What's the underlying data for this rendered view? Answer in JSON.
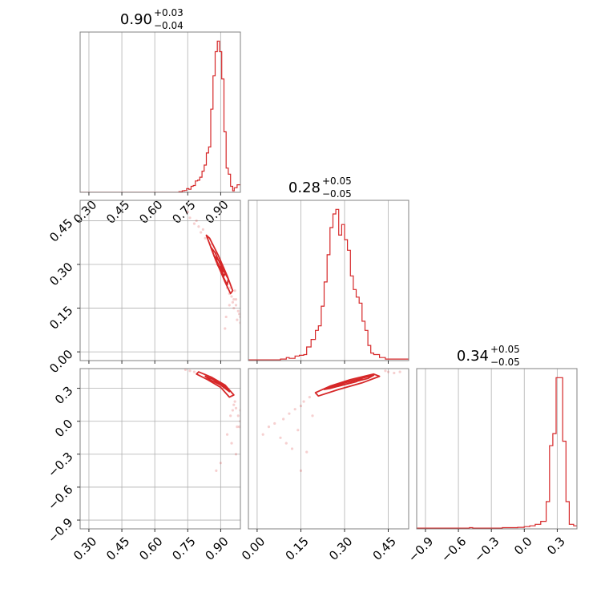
{
  "colors": {
    "series": "#d62728",
    "grid": "#b0b0b0",
    "frame": "#808080",
    "background": "#ffffff"
  },
  "chart_data": [
    {
      "type": "histogram",
      "position": "row-1-col-1",
      "title": {
        "base": "0.90",
        "plus": "+0.03",
        "minus": "−0.04"
      },
      "xlim": [
        0.26,
        0.99
      ],
      "xticks": [
        0.3,
        0.45,
        0.6,
        0.75,
        0.9
      ],
      "xtick_labels": [
        "0.30",
        "0.45",
        "0.60",
        "0.75",
        "0.90"
      ],
      "grid": true,
      "bins": [
        [
          0.26,
          0
        ],
        [
          0.71,
          0.004
        ],
        [
          0.725,
          0.01
        ],
        [
          0.735,
          0.012
        ],
        [
          0.745,
          0.025
        ],
        [
          0.755,
          0.02
        ],
        [
          0.765,
          0.04
        ],
        [
          0.775,
          0.045
        ],
        [
          0.785,
          0.075
        ],
        [
          0.795,
          0.08
        ],
        [
          0.805,
          0.1
        ],
        [
          0.815,
          0.14
        ],
        [
          0.825,
          0.18
        ],
        [
          0.835,
          0.26
        ],
        [
          0.845,
          0.3
        ],
        [
          0.855,
          0.55
        ],
        [
          0.865,
          0.77
        ],
        [
          0.875,
          0.93
        ],
        [
          0.885,
          1.0
        ],
        [
          0.895,
          0.93
        ],
        [
          0.905,
          0.75
        ],
        [
          0.915,
          0.4
        ],
        [
          0.925,
          0.16
        ],
        [
          0.935,
          0.12
        ],
        [
          0.945,
          0.04
        ],
        [
          0.955,
          0.01
        ],
        [
          0.962,
          0.03
        ],
        [
          0.975,
          0.05
        ],
        [
          0.99,
          0.05
        ]
      ]
    },
    {
      "type": "scatter-contour",
      "position": "row-2-col-1",
      "xlim": [
        0.26,
        0.99
      ],
      "ylim": [
        -0.03,
        0.52
      ],
      "xticks": [
        0.3,
        0.45,
        0.6,
        0.75,
        0.9
      ],
      "yticks": [
        0.0,
        0.15,
        0.3,
        0.45
      ],
      "ytick_labels": [
        "0.00",
        "0.15",
        "0.30",
        "0.45"
      ],
      "grid": true,
      "contours": [
        [
          [
            0.835,
            0.4
          ],
          [
            0.87,
            0.33
          ],
          [
            0.92,
            0.24
          ],
          [
            0.945,
            0.2
          ],
          [
            0.955,
            0.21
          ],
          [
            0.93,
            0.26
          ],
          [
            0.89,
            0.33
          ],
          [
            0.85,
            0.39
          ]
        ],
        [
          [
            0.855,
            0.36
          ],
          [
            0.88,
            0.31
          ],
          [
            0.91,
            0.26
          ],
          [
            0.93,
            0.23
          ],
          [
            0.935,
            0.25
          ],
          [
            0.905,
            0.29
          ],
          [
            0.875,
            0.34
          ]
        ],
        [
          [
            0.87,
            0.33
          ],
          [
            0.89,
            0.3
          ],
          [
            0.915,
            0.26
          ],
          [
            0.92,
            0.27
          ],
          [
            0.895,
            0.31
          ]
        ],
        [
          [
            0.885,
            0.3
          ],
          [
            0.9,
            0.28
          ],
          [
            0.91,
            0.275
          ],
          [
            0.9,
            0.29
          ]
        ]
      ],
      "points": [
        [
          0.75,
          0.48
        ],
        [
          0.76,
          0.46
        ],
        [
          0.78,
          0.44
        ],
        [
          0.79,
          0.45
        ],
        [
          0.8,
          0.43
        ],
        [
          0.81,
          0.41
        ],
        [
          0.82,
          0.42
        ],
        [
          0.83,
          0.39
        ],
        [
          0.86,
          0.37
        ],
        [
          0.88,
          0.34
        ],
        [
          0.9,
          0.29
        ],
        [
          0.92,
          0.27
        ],
        [
          0.93,
          0.22
        ],
        [
          0.95,
          0.19
        ],
        [
          0.96,
          0.18
        ],
        [
          0.97,
          0.16
        ],
        [
          0.98,
          0.14
        ],
        [
          0.99,
          0.12
        ],
        [
          0.985,
          0.13
        ],
        [
          0.97,
          0.18
        ],
        [
          0.96,
          0.15
        ],
        [
          0.955,
          0.17
        ],
        [
          0.945,
          0.22
        ],
        [
          0.94,
          0.2
        ],
        [
          0.925,
          0.12
        ],
        [
          0.92,
          0.08
        ],
        [
          0.94,
          0.16
        ],
        [
          0.965,
          0.21
        ],
        [
          0.975,
          0.11
        ],
        [
          0.99,
          0.1
        ]
      ]
    },
    {
      "type": "histogram",
      "position": "row-2-col-2",
      "title": {
        "base": "0.28",
        "plus": "+0.05",
        "minus": "−0.05"
      },
      "xlim": [
        -0.03,
        0.52
      ],
      "xticks": [
        0.0,
        0.15,
        0.3,
        0.45
      ],
      "grid": true,
      "bins": [
        [
          -0.03,
          0.005
        ],
        [
          0.06,
          0.005
        ],
        [
          0.08,
          0.01
        ],
        [
          0.1,
          0.02
        ],
        [
          0.11,
          0.015
        ],
        [
          0.13,
          0.03
        ],
        [
          0.145,
          0.035
        ],
        [
          0.16,
          0.04
        ],
        [
          0.17,
          0.09
        ],
        [
          0.185,
          0.14
        ],
        [
          0.2,
          0.2
        ],
        [
          0.21,
          0.23
        ],
        [
          0.22,
          0.36
        ],
        [
          0.23,
          0.52
        ],
        [
          0.24,
          0.7
        ],
        [
          0.25,
          0.88
        ],
        [
          0.26,
          0.97
        ],
        [
          0.27,
          1.0
        ],
        [
          0.28,
          0.83
        ],
        [
          0.29,
          0.9
        ],
        [
          0.3,
          0.8
        ],
        [
          0.31,
          0.73
        ],
        [
          0.32,
          0.56
        ],
        [
          0.33,
          0.47
        ],
        [
          0.34,
          0.42
        ],
        [
          0.35,
          0.38
        ],
        [
          0.36,
          0.26
        ],
        [
          0.37,
          0.2
        ],
        [
          0.38,
          0.1
        ],
        [
          0.39,
          0.05
        ],
        [
          0.4,
          0.04
        ],
        [
          0.42,
          0.02
        ],
        [
          0.44,
          0.01
        ],
        [
          0.46,
          0.01
        ],
        [
          0.48,
          0.01
        ],
        [
          0.52,
          0.01
        ]
      ]
    },
    {
      "type": "scatter-contour",
      "position": "row-3-col-1",
      "xlim": [
        0.26,
        0.99
      ],
      "ylim": [
        -0.98,
        0.48
      ],
      "xticks": [
        0.3,
        0.45,
        0.6,
        0.75,
        0.9
      ],
      "xtick_labels": [
        "0.30",
        "0.45",
        "0.60",
        "0.75",
        "0.90"
      ],
      "yticks": [
        -0.9,
        -0.6,
        -0.3,
        0.0,
        0.3
      ],
      "ytick_labels": [
        "−0.9",
        "−0.6",
        "−0.3",
        "0.0",
        "0.3"
      ],
      "grid": true,
      "contours": [
        [
          [
            0.8,
            0.45
          ],
          [
            0.86,
            0.4
          ],
          [
            0.92,
            0.33
          ],
          [
            0.96,
            0.24
          ],
          [
            0.94,
            0.22
          ],
          [
            0.9,
            0.31
          ],
          [
            0.84,
            0.38
          ],
          [
            0.79,
            0.43
          ]
        ],
        [
          [
            0.83,
            0.41
          ],
          [
            0.88,
            0.37
          ],
          [
            0.93,
            0.3
          ],
          [
            0.94,
            0.27
          ],
          [
            0.9,
            0.33
          ],
          [
            0.85,
            0.38
          ]
        ],
        [
          [
            0.86,
            0.39
          ],
          [
            0.9,
            0.35
          ],
          [
            0.92,
            0.32
          ],
          [
            0.88,
            0.36
          ]
        ]
      ],
      "points": [
        [
          0.74,
          0.47
        ],
        [
          0.76,
          0.46
        ],
        [
          0.78,
          0.45
        ],
        [
          0.97,
          0.12
        ],
        [
          0.98,
          0.05
        ],
        [
          0.99,
          0.0
        ],
        [
          0.985,
          -0.05
        ],
        [
          0.96,
          0.15
        ],
        [
          0.88,
          -0.45
        ],
        [
          0.9,
          -0.38
        ],
        [
          0.93,
          -0.12
        ],
        [
          0.95,
          -0.2
        ],
        [
          0.97,
          -0.3
        ],
        [
          0.975,
          -0.05
        ],
        [
          0.99,
          0.1
        ],
        [
          0.965,
          0.18
        ],
        [
          0.955,
          0.1
        ],
        [
          0.945,
          0.05
        ]
      ]
    },
    {
      "type": "scatter-contour",
      "position": "row-3-col-2",
      "xlim": [
        -0.03,
        0.52
      ],
      "ylim": [
        -0.98,
        0.48
      ],
      "xticks": [
        0.0,
        0.15,
        0.3,
        0.45
      ],
      "xtick_labels": [
        "0.00",
        "0.15",
        "0.30",
        "0.45"
      ],
      "grid": true,
      "contours": [
        [
          [
            0.2,
            0.26
          ],
          [
            0.25,
            0.32
          ],
          [
            0.32,
            0.38
          ],
          [
            0.4,
            0.43
          ],
          [
            0.42,
            0.41
          ],
          [
            0.36,
            0.35
          ],
          [
            0.28,
            0.29
          ],
          [
            0.21,
            0.23
          ]
        ],
        [
          [
            0.23,
            0.29
          ],
          [
            0.28,
            0.34
          ],
          [
            0.34,
            0.38
          ],
          [
            0.4,
            0.42
          ],
          [
            0.38,
            0.39
          ],
          [
            0.32,
            0.35
          ],
          [
            0.25,
            0.3
          ]
        ],
        [
          [
            0.26,
            0.31
          ],
          [
            0.3,
            0.35
          ],
          [
            0.36,
            0.39
          ],
          [
            0.34,
            0.36
          ],
          [
            0.28,
            0.32
          ]
        ]
      ],
      "points": [
        [
          0.02,
          -0.12
        ],
        [
          0.04,
          -0.05
        ],
        [
          0.06,
          -0.02
        ],
        [
          0.09,
          0.02
        ],
        [
          0.11,
          0.07
        ],
        [
          0.13,
          0.11
        ],
        [
          0.15,
          0.14
        ],
        [
          0.16,
          0.18
        ],
        [
          0.18,
          0.22
        ],
        [
          0.1,
          -0.2
        ],
        [
          0.12,
          -0.25
        ],
        [
          0.15,
          -0.45
        ],
        [
          0.17,
          -0.28
        ],
        [
          0.08,
          -0.15
        ],
        [
          0.45,
          0.45
        ],
        [
          0.47,
          0.44
        ],
        [
          0.44,
          0.46
        ],
        [
          0.49,
          0.45
        ],
        [
          0.14,
          -0.08
        ],
        [
          0.19,
          0.05
        ]
      ]
    },
    {
      "type": "histogram",
      "position": "row-3-col-3",
      "title": {
        "base": "0.34",
        "plus": "+0.05",
        "minus": "−0.05"
      },
      "xlim": [
        -0.98,
        0.48
      ],
      "xticks": [
        -0.9,
        -0.6,
        -0.3,
        0.0,
        0.3
      ],
      "xtick_labels": [
        "−0.9",
        "−0.6",
        "−0.3",
        "0.0",
        "0.3"
      ],
      "grid": true,
      "bins": [
        [
          -0.98,
          0.005
        ],
        [
          -0.5,
          0.008
        ],
        [
          -0.47,
          0.005
        ],
        [
          -0.2,
          0.008
        ],
        [
          -0.12,
          0.008
        ],
        [
          -0.06,
          0.01
        ],
        [
          0.0,
          0.015
        ],
        [
          0.05,
          0.02
        ],
        [
          0.1,
          0.03
        ],
        [
          0.15,
          0.05
        ],
        [
          0.2,
          0.18
        ],
        [
          0.23,
          0.55
        ],
        [
          0.26,
          0.63
        ],
        [
          0.29,
          1.0
        ],
        [
          0.35,
          0.58
        ],
        [
          0.38,
          0.18
        ],
        [
          0.41,
          0.03
        ],
        [
          0.45,
          0.02
        ],
        [
          0.48,
          0.02
        ]
      ]
    }
  ]
}
